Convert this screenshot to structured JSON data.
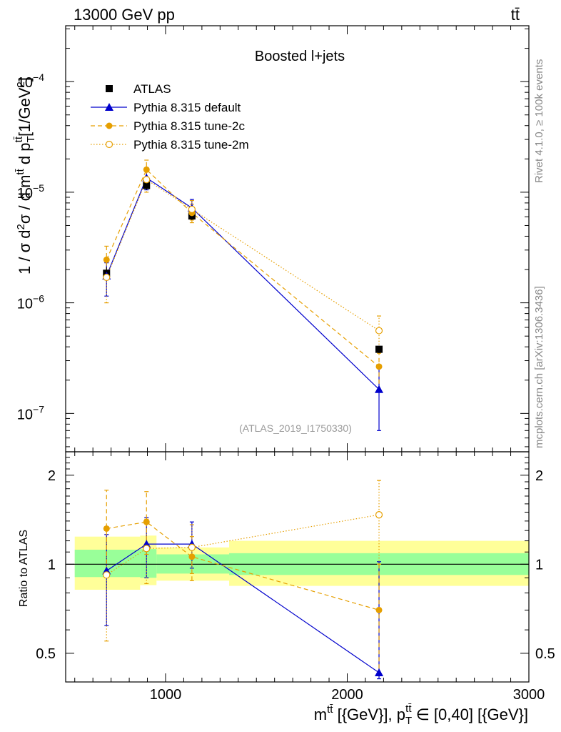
{
  "header": {
    "energy_label": "13000 GeV pp",
    "process_label": "tt̄",
    "rivet_label": "Rivet 4.1.0, ≥ 100k events",
    "mcplots_label": "mcplots.cern.ch [arXiv:1306.3436]"
  },
  "chart_data": {
    "type": "scatter",
    "title": "Boosted l+jets",
    "analysis_label": "(ATLAS_2019_I1750330)",
    "ylabel": "1 / σ d²σ / d m^tt̄ d p_T^tt̄ [1/GeV²]",
    "ylabel_parts": {
      "main": "1 / σ d",
      "sq1": "2",
      "mid": "σ / d m",
      "tt1": "tt̄",
      "mid2": " d p",
      "T": "T",
      "tt2": "tt̄",
      "unit": "[1/GeV",
      "sq2": "2",
      "close": "]"
    },
    "xlabel": "m^tt̄ [{GeV}], p_T^tt̄ ∈ [0,40] [{GeV}]",
    "xlabel_parts": {
      "m": "m",
      "tt1": "tt̄",
      "rest1": " [{GeV}], p",
      "T": "T",
      "tt2": "tt̄",
      "rest2": " ∈ [0,40] [{GeV}]"
    },
    "ratio_ylabel": "Ratio to ATLAS",
    "xlim": [
      450,
      3000
    ],
    "ylim": [
      4.5e-08,
      0.00032
    ],
    "yscale": "log",
    "ratio_ylim": [
      0.4,
      2.4
    ],
    "x_ticks": [
      1000,
      2000,
      3000
    ],
    "y_ticks": [
      {
        "value": 1e-07,
        "base": "10",
        "exp": "−7"
      },
      {
        "value": 1e-06,
        "base": "10",
        "exp": "−6"
      },
      {
        "value": 1e-05,
        "base": "10",
        "exp": "−5"
      },
      {
        "value": 0.0001,
        "base": "10",
        "exp": "−4"
      }
    ],
    "ratio_ticks": [
      {
        "value": 0.5,
        "label": "0.5"
      },
      {
        "value": 1,
        "label": "1"
      },
      {
        "value": 2,
        "label": "2"
      }
    ],
    "bins": [
      {
        "xlo": 500,
        "xhi": 860,
        "stat_lo": 0.905,
        "stat_hi": 1.12,
        "tot_lo": 0.82,
        "tot_hi": 1.24
      },
      {
        "xlo": 860,
        "xhi": 950,
        "stat_lo": 0.9,
        "stat_hi": 1.125,
        "tot_lo": 0.85,
        "tot_hi": 1.25
      },
      {
        "xlo": 950,
        "xhi": 1350,
        "stat_lo": 0.93,
        "stat_hi": 1.08,
        "tot_lo": 0.88,
        "tot_hi": 1.14
      },
      {
        "xlo": 1350,
        "xhi": 3000,
        "stat_lo": 0.92,
        "stat_hi": 1.09,
        "tot_lo": 0.845,
        "tot_hi": 1.2
      }
    ],
    "x": [
      675,
      895,
      1145,
      2175
    ],
    "series": [
      {
        "name": "ATLAS",
        "color": "#000000",
        "marker": "square",
        "linestyle": "none",
        "values": [
          1.85e-06,
          1.15e-05,
          6.1e-06,
          3.8e-07
        ],
        "err_lo": [
          1.6e-06,
          1.05e-05,
          5.6e-06,
          3.5e-07
        ],
        "err_hi": [
          2.1e-06,
          1.25e-05,
          6.6e-06,
          4.1e-07
        ]
      },
      {
        "name": "Pythia 8.315 default",
        "color": "#0000cc",
        "marker": "triangle",
        "linestyle": "solid",
        "values": [
          1.75e-06,
          1.35e-05,
          7.2e-06,
          1.65e-07
        ],
        "err_lo": [
          1.15e-06,
          1.05e-05,
          5.9e-06,
          7e-08
        ],
        "err_hi": [
          2.3e-06,
          1.65e-05,
          8.6e-06,
          2.6e-07
        ],
        "ratio": [
          0.95,
          1.17,
          1.17,
          0.43
        ],
        "ratio_lo": [
          0.62,
          0.9,
          0.97,
          0.41
        ],
        "ratio_hi": [
          1.26,
          1.44,
          1.39,
          1.02
        ]
      },
      {
        "name": "Pythia 8.315 tune-2c",
        "color": "#e69f00",
        "marker": "circle",
        "linestyle": "dashed",
        "values": [
          2.45e-06,
          1.6e-05,
          6.5e-06,
          2.65e-07
        ],
        "err_lo": [
          1.65e-06,
          1.27e-05,
          5.3e-06,
          1.6e-07
        ],
        "err_hi": [
          3.25e-06,
          1.95e-05,
          7.8e-06,
          3.7e-07
        ],
        "ratio": [
          1.32,
          1.39,
          1.06,
          0.7
        ],
        "ratio_lo": [
          0.9,
          1.08,
          0.88,
          0.42
        ],
        "ratio_hi": [
          1.78,
          1.76,
          1.24,
          1.0
        ]
      },
      {
        "name": "Pythia 8.315 tune-2m",
        "color": "#e69f00",
        "marker": "circle-open",
        "linestyle": "dotted",
        "values": [
          1.7e-06,
          1.3e-05,
          7e-06,
          5.6e-07
        ],
        "err_lo": [
          1e-06,
          1e-05,
          5.6e-06,
          3.5e-07
        ],
        "err_hi": [
          2.45e-06,
          1.6e-05,
          8.4e-06,
          7.6e-07
        ],
        "ratio": [
          0.92,
          1.13,
          1.14,
          1.47
        ],
        "ratio_lo": [
          0.55,
          0.86,
          0.93,
          1.0
        ],
        "ratio_hi": [
          1.3,
          1.42,
          1.36,
          1.92
        ]
      }
    ]
  }
}
